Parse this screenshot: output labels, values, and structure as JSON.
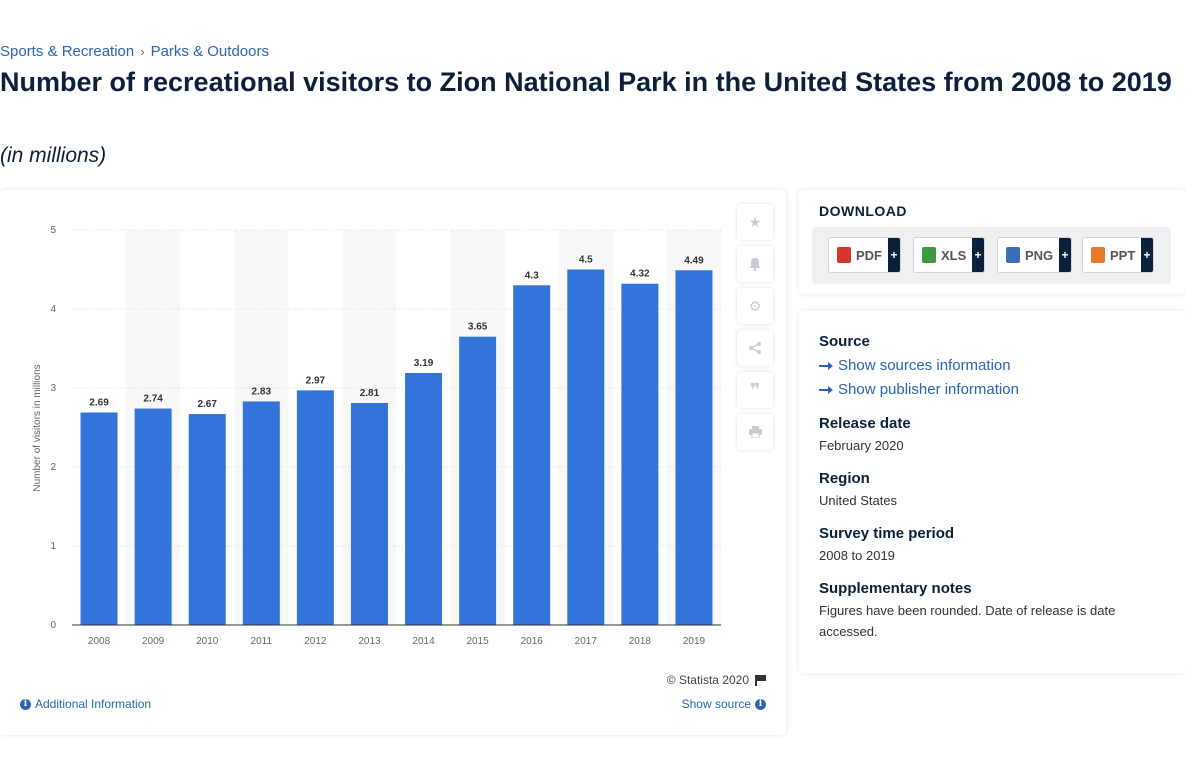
{
  "breadcrumb": {
    "items": [
      "Sports & Recreation",
      "Parks & Outdoors"
    ],
    "separator": "›"
  },
  "header": {
    "title": "Number of recreational visitors to Zion National Park in the United States from 2008 to 2019",
    "subtitle": "(in millions)"
  },
  "chart_data": {
    "type": "bar",
    "categories": [
      "2008",
      "2009",
      "2010",
      "2011",
      "2012",
      "2013",
      "2014",
      "2015",
      "2016",
      "2017",
      "2018",
      "2019"
    ],
    "values": [
      2.69,
      2.74,
      2.67,
      2.83,
      2.97,
      2.81,
      3.19,
      3.65,
      4.3,
      4.5,
      4.32,
      4.49
    ],
    "value_labels": [
      "2.69",
      "2.74",
      "2.67",
      "2.83",
      "2.97",
      "2.81",
      "3.19",
      "3.65",
      "4.3",
      "4.5",
      "4.32",
      "4.49"
    ],
    "ylabel": "Number of visitors in millions",
    "yticks": [
      "0",
      "1",
      "2",
      "3",
      "4",
      "5"
    ],
    "ylim": [
      0,
      5
    ],
    "bar_color": "#3374db",
    "grid": true,
    "legend": "none"
  },
  "chart_footer": {
    "copyright": "© Statista 2020",
    "additional_info": "Additional Information",
    "show_source": "Show source"
  },
  "toolbar": [
    "star-icon",
    "bell-icon",
    "gear-icon",
    "share-icon",
    "quote-icon",
    "print-icon"
  ],
  "download": {
    "title": "DOWNLOAD",
    "buttons": [
      {
        "label": "PDF",
        "plus": "+",
        "color": "#d9342b"
      },
      {
        "label": "XLS",
        "plus": "+",
        "color": "#3e9b3a"
      },
      {
        "label": "PNG",
        "plus": "+",
        "color": "#3a6fb5"
      },
      {
        "label": "PPT",
        "plus": "+",
        "color": "#e8782a"
      }
    ]
  },
  "details": {
    "source_heading": "Source",
    "show_sources": "Show sources information",
    "show_publisher": "Show publisher information",
    "release_heading": "Release date",
    "release_value": "February 2020",
    "region_heading": "Region",
    "region_value": "United States",
    "survey_heading": "Survey time period",
    "survey_value": "2008 to 2019",
    "notes_heading": "Supplementary notes",
    "notes_value": "Figures have been rounded. Date of release is date accessed."
  }
}
